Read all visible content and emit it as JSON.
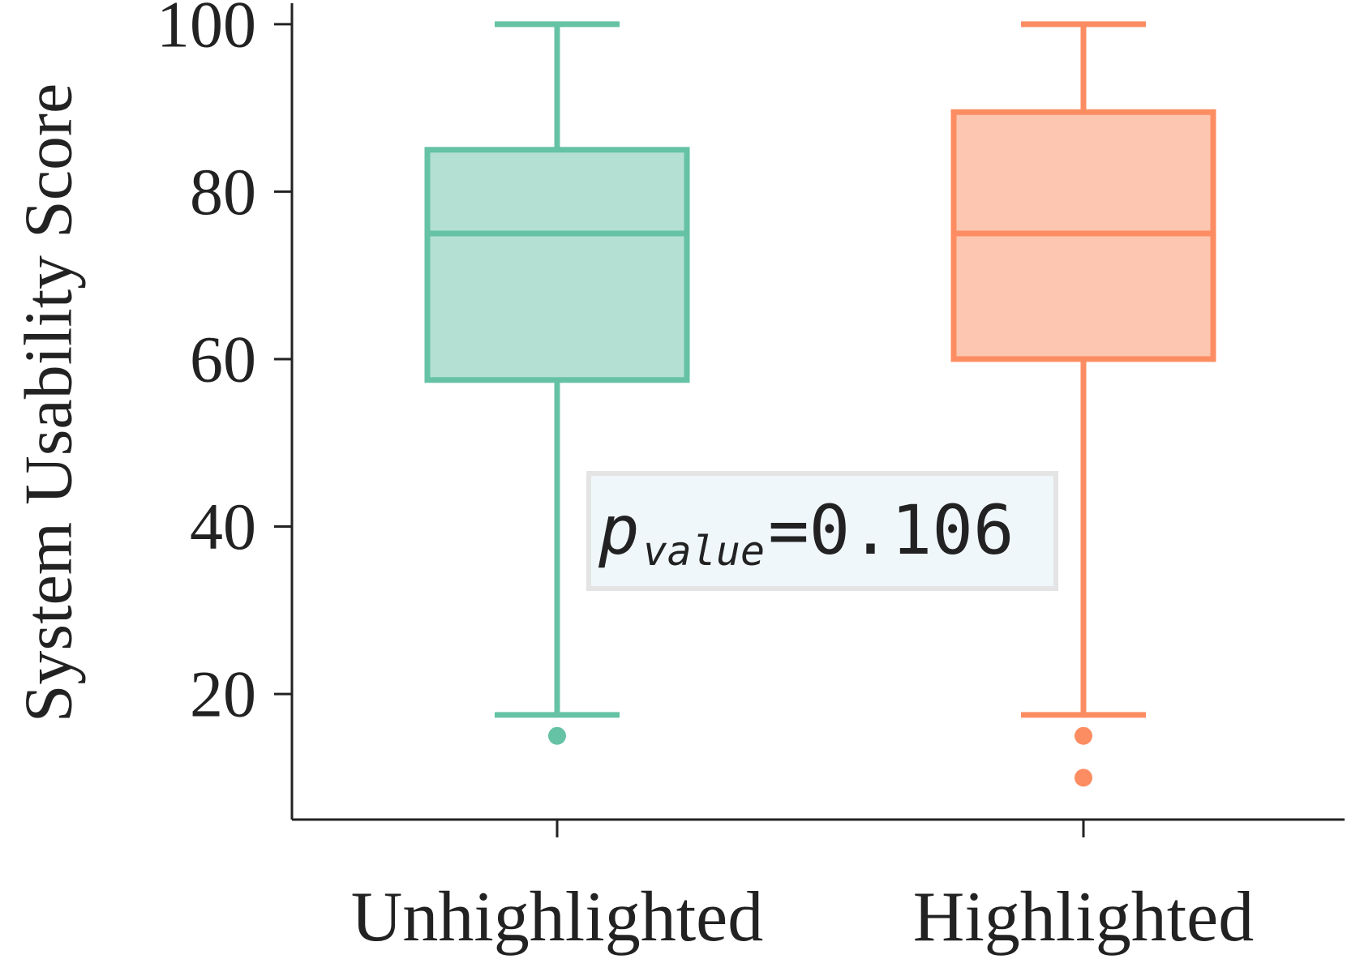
{
  "chart_data": {
    "type": "box",
    "title": "",
    "xlabel": "",
    "ylabel": "System Usability Score",
    "ylim": [
      5,
      102.5
    ],
    "yticks": [
      20,
      40,
      60,
      80,
      100
    ],
    "ytick_labels": [
      "20",
      "40",
      "60",
      "80",
      "100"
    ],
    "grid": false,
    "categories": [
      "Unhighlighted",
      "Highlighted"
    ],
    "series": [
      {
        "category": "Unhighlighted",
        "whisker_low": 17.5,
        "q1": 57.5,
        "median": 75,
        "q3": 85,
        "whisker_high": 100,
        "outliers": [
          15
        ],
        "edge_color": "#66c2a5",
        "fill_color": "#b3e0d2"
      },
      {
        "category": "Highlighted",
        "whisker_low": 17.5,
        "q1": 60,
        "median": 75,
        "q3": 89.5,
        "whisker_high": 100,
        "outliers": [
          15,
          10
        ],
        "edge_color": "#fc8d62",
        "fill_color": "#fcc6b0"
      }
    ],
    "annotation": {
      "symbol": "p",
      "subscript": "value",
      "text": "=0.106",
      "box_fill": "#f0f7fb",
      "box_edge": "#e4e4e4"
    },
    "axis_color": "#222222"
  }
}
